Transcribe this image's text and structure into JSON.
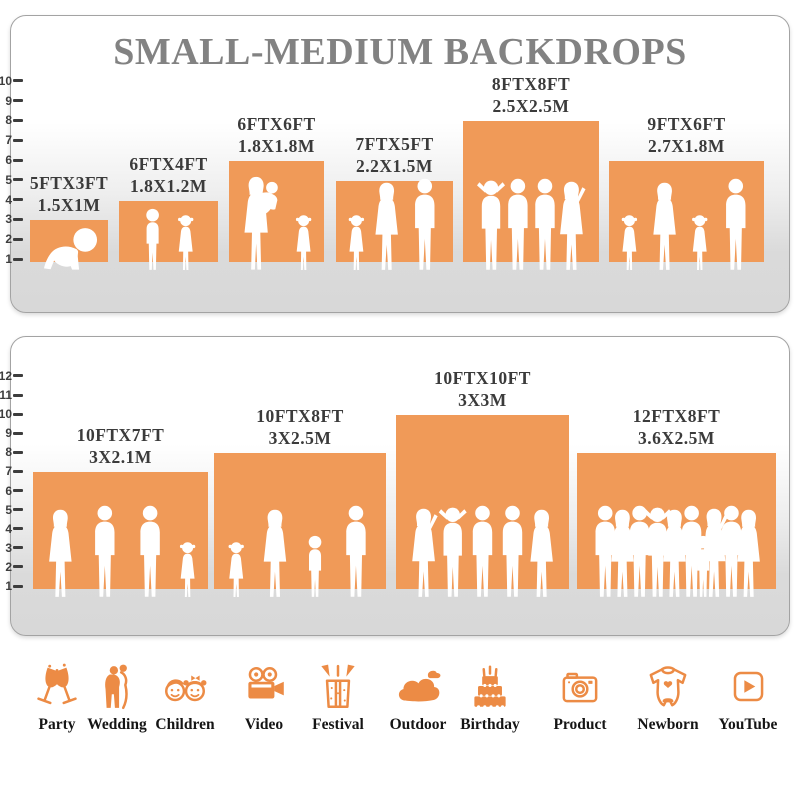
{
  "title": "SMALL-MEDIUM BACKDROPS",
  "colors": {
    "bar_orange": "#F09A58",
    "icon_orange": "#EC8B45",
    "title_gray": "#828282",
    "text_dark": "#3B3B3B",
    "floor_gray": "#D8D8D8"
  },
  "chart_data": [
    {
      "type": "bar",
      "panel": "small-medium-backdrops-upper",
      "ylim": [
        1,
        10
      ],
      "yticks": [
        1,
        2,
        3,
        4,
        5,
        6,
        7,
        8,
        9,
        10
      ],
      "grid": false,
      "bars": [
        {
          "size_ft": "5FTX3FT",
          "size_m": "1.5X1M",
          "width_ft": 5,
          "height_ft": 3,
          "figures": [
            "baby-crawling"
          ]
        },
        {
          "size_ft": "6FTX4FT",
          "size_m": "1.8X1.2M",
          "width_ft": 6,
          "height_ft": 4,
          "figures": [
            "boy",
            "girl"
          ]
        },
        {
          "size_ft": "6FTX6FT",
          "size_m": "1.8X1.8M",
          "width_ft": 6,
          "height_ft": 6,
          "figures": [
            "woman-holding-child",
            "girl"
          ]
        },
        {
          "size_ft": "7FTX5FT",
          "size_m": "2.2X1.5M",
          "width_ft": 7,
          "height_ft": 5,
          "figures": [
            "girl",
            "woman",
            "man"
          ]
        },
        {
          "size_ft": "8FTX8FT",
          "size_m": "2.5X2.5M",
          "width_ft": 8,
          "height_ft": 8,
          "figures": [
            "man-arms-up",
            "man",
            "man",
            "woman-arm-up"
          ]
        },
        {
          "size_ft": "9FTX6FT",
          "size_m": "2.7X1.8M",
          "width_ft": 9,
          "height_ft": 6,
          "figures": [
            "girl",
            "woman",
            "girl",
            "man"
          ]
        }
      ]
    },
    {
      "type": "bar",
      "panel": "small-medium-backdrops-lower",
      "ylim": [
        1,
        12
      ],
      "yticks": [
        1,
        2,
        3,
        4,
        5,
        6,
        7,
        8,
        9,
        10,
        11,
        12
      ],
      "grid": false,
      "bars": [
        {
          "size_ft": "10FTX7FT",
          "size_m": "3X2.1M",
          "width_ft": 10,
          "height_ft": 7,
          "figures": [
            "woman",
            "man",
            "man",
            "girl"
          ]
        },
        {
          "size_ft": "10FTX8FT",
          "size_m": "3X2.5M",
          "width_ft": 10,
          "height_ft": 8,
          "figures": [
            "girl",
            "woman",
            "boy",
            "man"
          ]
        },
        {
          "size_ft": "10FTX10FT",
          "size_m": "3X3M",
          "width_ft": 10,
          "height_ft": 10,
          "figures": [
            "woman-arm-up",
            "man-arms-up",
            "man",
            "man",
            "woman"
          ]
        },
        {
          "size_ft": "12FTX8FT",
          "size_m": "3.6X2.5M",
          "width_ft": 12,
          "height_ft": 8,
          "figures": [
            "man",
            "woman",
            "man",
            "man-arms-up",
            "woman",
            "man",
            "boy",
            "woman-arm-up",
            "man",
            "woman"
          ]
        }
      ]
    }
  ],
  "categories": [
    {
      "label": "Party",
      "icon": "party-icon"
    },
    {
      "label": "Wedding",
      "icon": "wedding-icon"
    },
    {
      "label": "Children",
      "icon": "children-icon"
    },
    {
      "label": "Video",
      "icon": "video-icon"
    },
    {
      "label": "Festival",
      "icon": "festival-icon"
    },
    {
      "label": "Outdoor",
      "icon": "outdoor-icon"
    },
    {
      "label": "Birthday",
      "icon": "birthday-icon"
    },
    {
      "label": "Product",
      "icon": "product-icon"
    },
    {
      "label": "Newborn",
      "icon": "newborn-icon"
    },
    {
      "label": "YouTube",
      "icon": "youtube-icon"
    }
  ]
}
